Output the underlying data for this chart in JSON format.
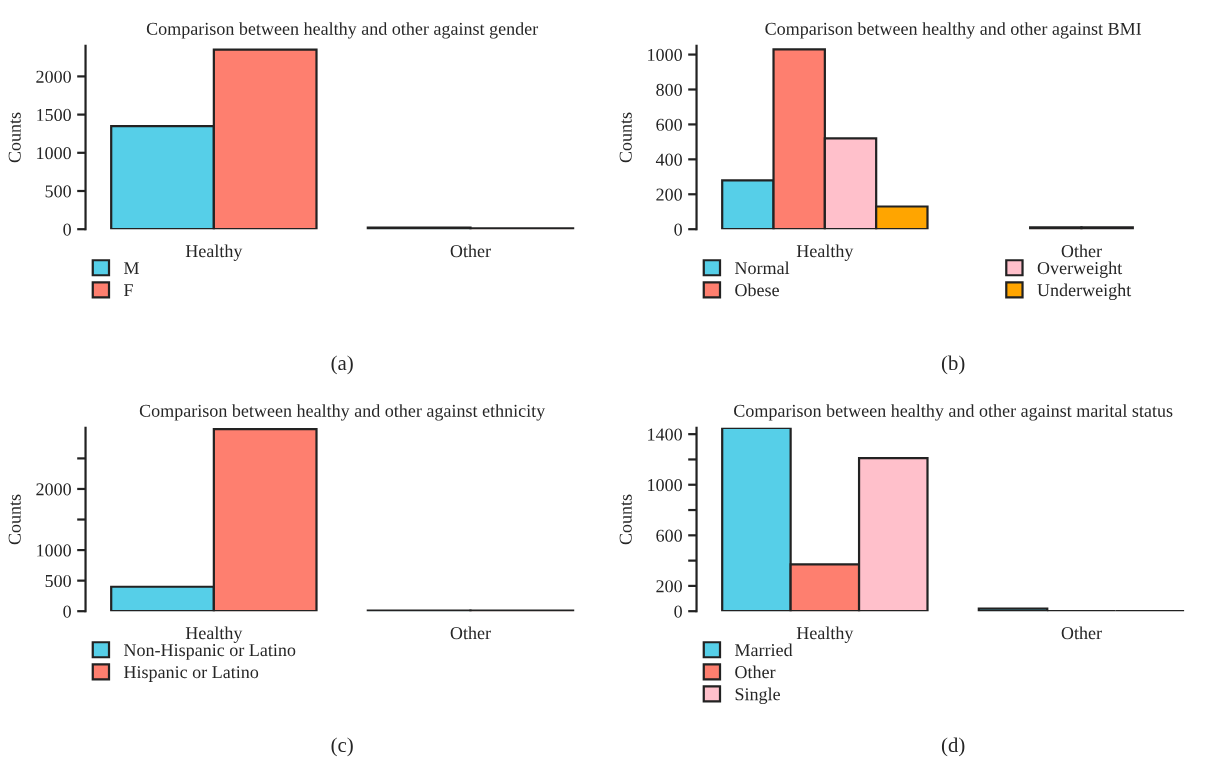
{
  "chart_data": [
    {
      "type": "bar",
      "title": "Comparison between healthy and other against gender",
      "ylabel": "Counts",
      "categories": [
        "Healthy",
        "Other"
      ],
      "series": [
        {
          "name": "M",
          "color": "#56cfe8",
          "values": [
            1350,
            20
          ]
        },
        {
          "name": "F",
          "color": "#fe7f6f",
          "values": [
            2350,
            10
          ]
        }
      ],
      "ylim": [
        0,
        2400
      ],
      "yticks": [
        0,
        500,
        1000,
        1500,
        2000
      ],
      "legend": "bottom left",
      "grid": false,
      "annotations": [
        "(a)"
      ]
    },
    {
      "type": "bar",
      "title": "Comparison between healthy and other against BMI",
      "ylabel": "Counts",
      "categories": [
        "Healthy",
        "Other"
      ],
      "series": [
        {
          "name": "Normal",
          "color": "#56cfe8",
          "values": [
            280,
            null
          ]
        },
        {
          "name": "Obese",
          "color": "#fe7f6f",
          "values": [
            1030,
            10
          ]
        },
        {
          "name": "Overweight",
          "color": "#ffc0cb",
          "values": [
            520,
            10
          ]
        },
        {
          "name": "Underweight",
          "color": "#ffa500",
          "values": [
            130,
            null
          ]
        }
      ],
      "ylim": [
        0,
        1050
      ],
      "yticks": [
        0,
        200,
        400,
        600,
        800,
        1000
      ],
      "legend": "bottom left",
      "grid": false,
      "annotations": [
        "(b)"
      ]
    },
    {
      "type": "bar",
      "title": "Comparison between healthy and other against ethnicity",
      "ylabel": "Counts",
      "categories": [
        "Healthy",
        "Other"
      ],
      "series": [
        {
          "name": "Non-Hispanic or Latino",
          "color": "#56cfe8",
          "values": [
            400,
            10
          ]
        },
        {
          "name": "Hispanic or Latino",
          "color": "#fe7f6f",
          "values": [
            2980,
            10
          ]
        }
      ],
      "ylim": [
        0,
        3000
      ],
      "yticks": [
        0,
        500,
        1000,
        {
          "value": 1500,
          "label": null
        },
        2000,
        {
          "value": 2500,
          "label": null
        }
      ],
      "legend": "bottom left",
      "grid": false,
      "annotations": [
        "(c)"
      ]
    },
    {
      "type": "bar",
      "title": "Comparison between healthy and other against marital status",
      "ylabel": "Counts",
      "categories": [
        "Healthy",
        "Other"
      ],
      "series": [
        {
          "name": "Married",
          "color": "#56cfe8",
          "values": [
            1450,
            20
          ]
        },
        {
          "name": "Other",
          "color": "#fe7f6f",
          "values": [
            370,
            0
          ]
        },
        {
          "name": "Single",
          "color": "#ffc0cb",
          "values": [
            1210,
            0
          ]
        }
      ],
      "ylim": [
        0,
        1450
      ],
      "yticks": [
        0,
        200,
        {
          "value": 400,
          "label": null
        },
        600,
        {
          "value": 800,
          "label": null
        },
        1000,
        {
          "value": 1200,
          "label": null
        },
        1400
      ],
      "legend": "bottom left",
      "grid": false,
      "annotations": [
        "(d)"
      ]
    }
  ]
}
